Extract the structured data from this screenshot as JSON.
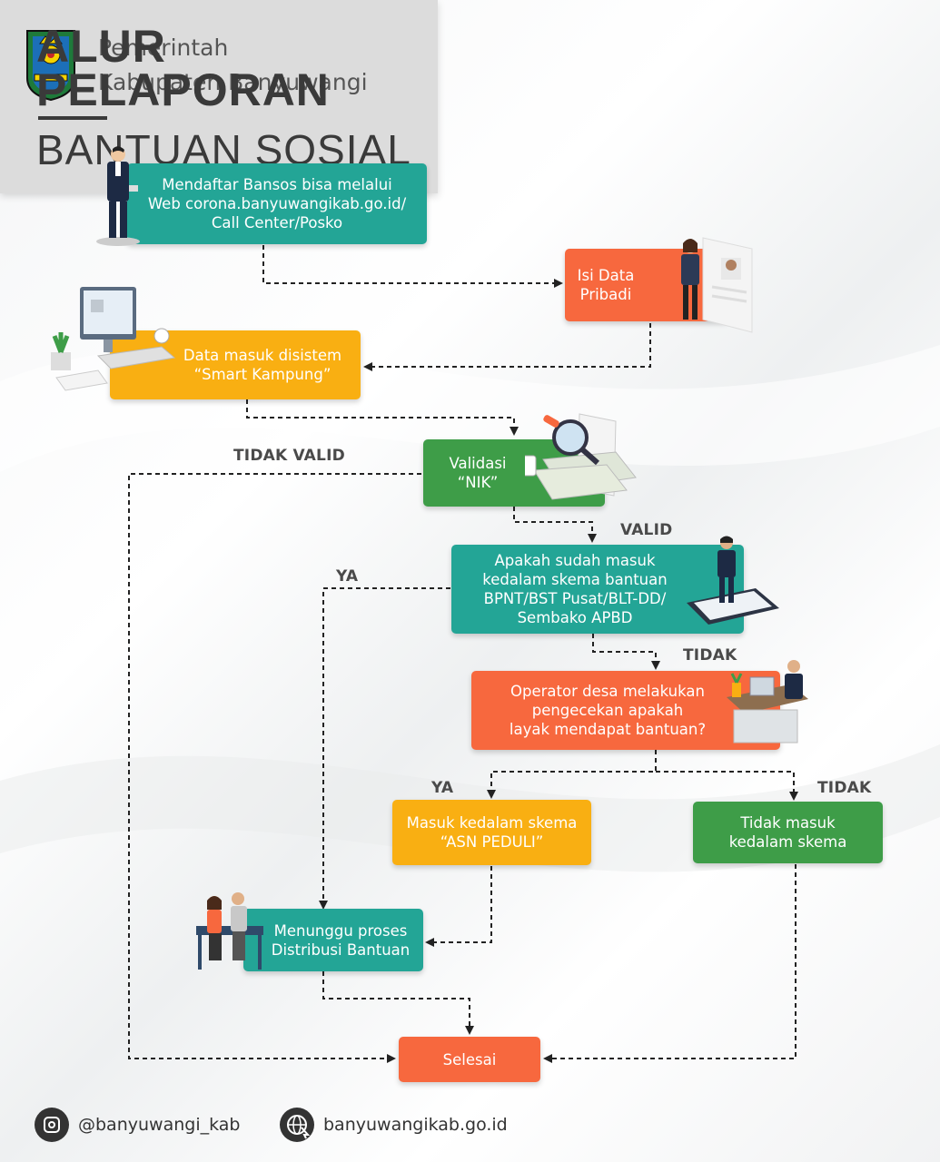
{
  "header": {
    "org_line1": "Pemerintah",
    "org_line2": "Kabupaten Banyuwangi",
    "title_line1": "ALUR",
    "title_line2": "PELAPORAN",
    "title_line3": "BANTUAN SOSIAL"
  },
  "steps": {
    "register": [
      "Mendaftar Bansos bisa melalui",
      "Web corona.banyuwangikab.go.id/",
      "Call Center/Posko"
    ],
    "personal_data": [
      "Isi Data",
      "Pribadi"
    ],
    "smart_kampung": [
      "Data masuk disistem",
      "“Smart Kampung”"
    ],
    "validate_nik": [
      "Validasi",
      "“NIK”"
    ],
    "check_scheme": [
      "Apakah sudah masuk",
      "kedalam skema bantuan",
      "BPNT/BST Pusat/BLT-DD/",
      "Sembako APBD"
    ],
    "operator_check": [
      "Operator desa melakukan",
      "pengecekan apakah",
      "layak mendapat bantuan?"
    ],
    "asn_peduli": [
      "Masuk kedalam skema",
      "“ASN PEDULI”"
    ],
    "not_in_scheme": [
      "Tidak masuk",
      "kedalam skema"
    ],
    "waiting": [
      "Menunggu proses",
      "Distribusi Bantuan"
    ],
    "done": [
      "Selesai"
    ]
  },
  "edge_labels": {
    "not_valid": "TIDAK VALID",
    "valid": "VALID",
    "yes_1": "YA",
    "no_1": "TIDAK",
    "yes_2": "YA",
    "no_2": "TIDAK"
  },
  "footer": {
    "instagram": "@banyuwangi_kab",
    "website": "banyuwangikab.go.id"
  },
  "colors": {
    "teal": "#23a596",
    "orange": "#f7683e",
    "yellow": "#f9af12",
    "green": "#3e9d48"
  }
}
